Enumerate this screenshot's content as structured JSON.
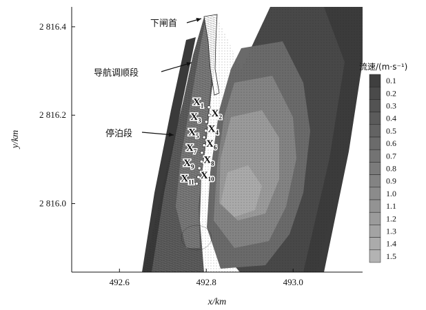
{
  "chart_data": {
    "type": "heatmap",
    "xlabel": "x/km",
    "ylabel": "y/km",
    "xlim": [
      492.49,
      493.16
    ],
    "ylim": [
      2815.845,
      2816.445
    ],
    "xticks": [
      {
        "value": 492.6,
        "label": "492.6"
      },
      {
        "value": 492.8,
        "label": "492.8"
      },
      {
        "value": 493.0,
        "label": "493.0"
      }
    ],
    "yticks": [
      {
        "value": 2816.0,
        "label": "2 816.0"
      },
      {
        "value": 2816.2,
        "label": "2 816.2"
      },
      {
        "value": 2816.4,
        "label": "2 816.4"
      }
    ],
    "colorbar": {
      "title": "流速/(m·s⁻¹)",
      "levels": [
        0.1,
        0.2,
        0.3,
        0.4,
        0.5,
        0.6,
        0.7,
        0.8,
        0.9,
        1.0,
        1.1,
        1.2,
        1.3,
        1.4,
        1.5
      ],
      "labels": [
        "0.1",
        "0.2",
        "0.3",
        "0.4",
        "0.5",
        "0.6",
        "0.7",
        "0.8",
        "0.9",
        "1.0",
        "1.1",
        "1.2",
        "1.3",
        "1.4",
        "1.5"
      ],
      "colors": [
        "#3f3f3f",
        "#4a4a4a",
        "#535353",
        "#5b5b5b",
        "#636363",
        "#6b6b6b",
        "#737373",
        "#7b7b7b",
        "#838383",
        "#8b8b8b",
        "#939393",
        "#9b9b9b",
        "#a3a3a3",
        "#ababab",
        "#b3b3b3"
      ]
    },
    "annotations": [
      {
        "text": "下闸首",
        "x": 492.806,
        "y": 2816.42
      },
      {
        "text": "导航调顺段",
        "x": 492.78,
        "y": 2816.31
      },
      {
        "text": "停泊段",
        "x": 492.745,
        "y": 2816.16
      }
    ],
    "points": [
      {
        "label": "X",
        "sub": "1",
        "x": 492.806,
        "y": 2816.218
      },
      {
        "label": "X",
        "sub": "2",
        "x": 492.807,
        "y": 2816.2
      },
      {
        "label": "X",
        "sub": "3",
        "x": 492.8,
        "y": 2816.185
      },
      {
        "label": "X",
        "sub": "4",
        "x": 492.799,
        "y": 2816.165
      },
      {
        "label": "X",
        "sub": "5",
        "x": 492.795,
        "y": 2816.15
      },
      {
        "label": "X",
        "sub": "6",
        "x": 492.795,
        "y": 2816.132
      },
      {
        "label": "X",
        "sub": "7",
        "x": 492.79,
        "y": 2816.115
      },
      {
        "label": "X",
        "sub": "8",
        "x": 492.789,
        "y": 2816.095
      },
      {
        "label": "X",
        "sub": "9",
        "x": 492.784,
        "y": 2816.08
      },
      {
        "label": "X",
        "sub": "10",
        "x": 492.782,
        "y": 2816.06
      },
      {
        "label": "X",
        "sub": "11",
        "x": 492.778,
        "y": 2816.045
      }
    ]
  }
}
